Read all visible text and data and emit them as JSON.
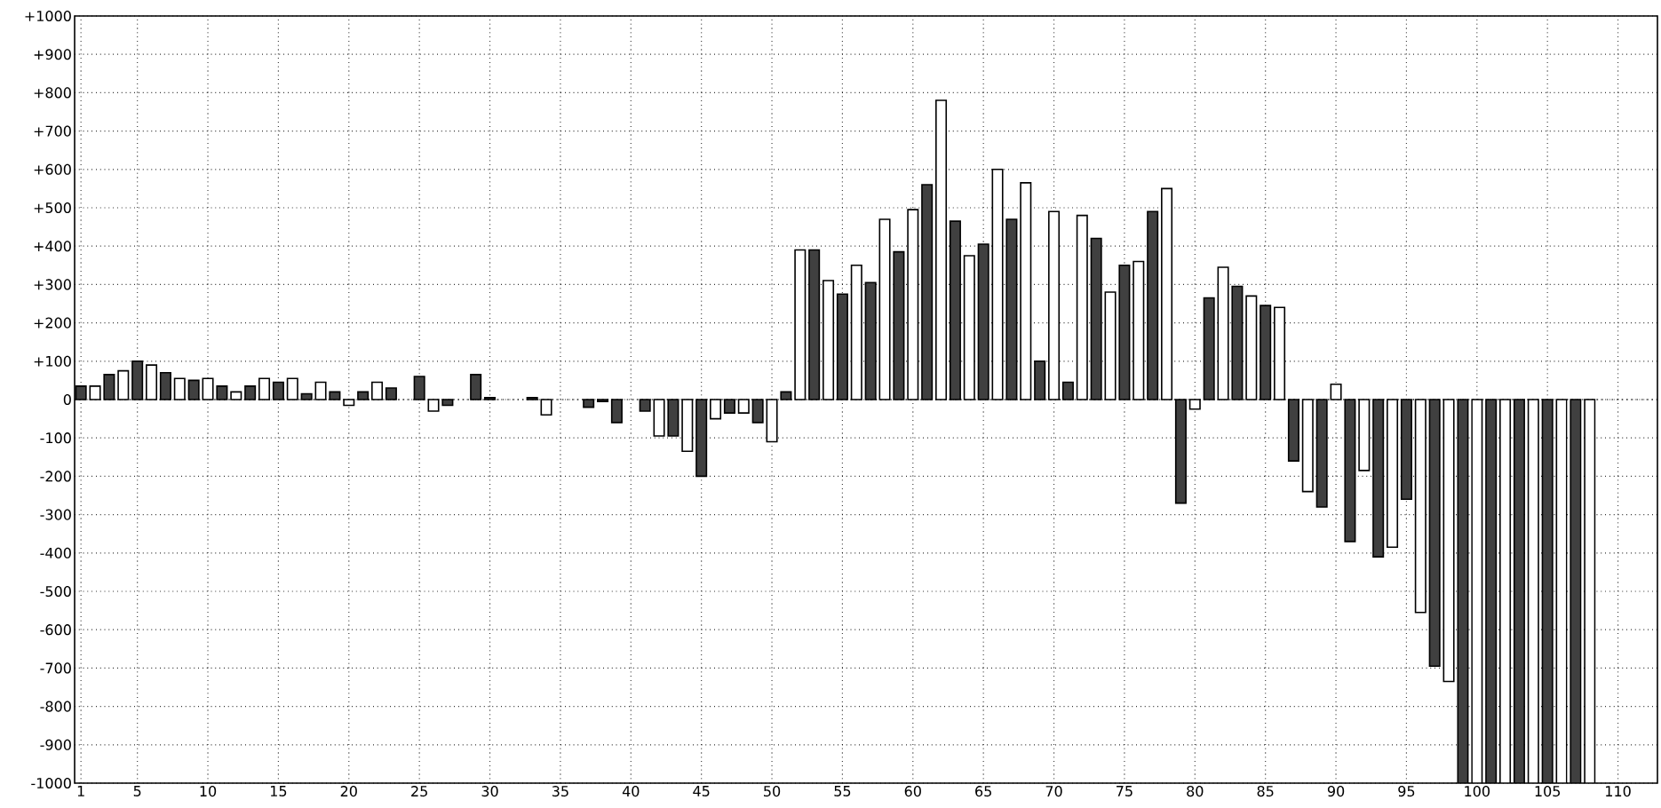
{
  "chart_data": {
    "type": "bar",
    "grid": true,
    "x": [
      1,
      2,
      3,
      4,
      5,
      6,
      7,
      8,
      9,
      10,
      11,
      12,
      13,
      14,
      15,
      16,
      17,
      18,
      19,
      20,
      21,
      22,
      23,
      24,
      25,
      26,
      27,
      28,
      29,
      30,
      31,
      32,
      33,
      34,
      35,
      36,
      37,
      38,
      39,
      40,
      41,
      42,
      43,
      44,
      45,
      46,
      47,
      48,
      49,
      50,
      51,
      52,
      53,
      54,
      55,
      56,
      57,
      58,
      59,
      60,
      61,
      62,
      63,
      64,
      65,
      66,
      67,
      68,
      69,
      70,
      71,
      72,
      73,
      74,
      75,
      76,
      77,
      78,
      79,
      80,
      81,
      82,
      83,
      84,
      85,
      86,
      87,
      88,
      89,
      90,
      91,
      92,
      93,
      94,
      95,
      96,
      97,
      98,
      99,
      100,
      101,
      102,
      103,
      104,
      105,
      106,
      107,
      108
    ],
    "values": [
      35,
      35,
      65,
      75,
      100,
      90,
      70,
      55,
      50,
      55,
      35,
      20,
      35,
      55,
      45,
      55,
      15,
      45,
      20,
      -15,
      20,
      45,
      30,
      null,
      60,
      -30,
      -15,
      null,
      65,
      5,
      null,
      null,
      5,
      -40,
      null,
      null,
      -20,
      -5,
      -60,
      null,
      -30,
      -95,
      -95,
      -135,
      -200,
      -50,
      -35,
      -35,
      -60,
      -110,
      20,
      390,
      390,
      310,
      275,
      350,
      305,
      470,
      385,
      495,
      560,
      780,
      465,
      375,
      405,
      600,
      470,
      565,
      100,
      490,
      45,
      480,
      420,
      280,
      350,
      360,
      490,
      550,
      -270,
      -25,
      265,
      345,
      295,
      270,
      245,
      240,
      -160,
      -240,
      -280,
      40,
      -370,
      -185,
      -410,
      -385,
      -260,
      -555,
      -695,
      -735,
      -1000,
      -1000,
      -1000,
      -1000,
      -1000,
      -1000,
      -1000,
      -1000,
      -1000,
      -1000
    ],
    "colors": [
      "#404040",
      "#ffffff",
      "#404040",
      "#ffffff",
      "#404040",
      "#ffffff",
      "#404040",
      "#ffffff",
      "#404040",
      "#ffffff",
      "#404040",
      "#ffffff",
      "#404040",
      "#ffffff",
      "#404040",
      "#ffffff",
      "#404040",
      "#ffffff",
      "#404040",
      "#ffffff",
      "#404040",
      "#ffffff",
      "#404040",
      "#ffffff",
      "#404040",
      "#ffffff",
      "#404040",
      "#ffffff",
      "#404040",
      "#404040",
      "#404040",
      "#404040",
      "#404040",
      "#ffffff",
      "#404040",
      "#404040",
      "#404040",
      "#404040",
      "#404040",
      "#404040",
      "#404040",
      "#ffffff",
      "#404040",
      "#ffffff",
      "#404040",
      "#ffffff",
      "#404040",
      "#ffffff",
      "#404040",
      "#ffffff",
      "#404040",
      "#ffffff",
      "#404040",
      "#ffffff",
      "#404040",
      "#ffffff",
      "#404040",
      "#ffffff",
      "#404040",
      "#ffffff",
      "#404040",
      "#ffffff",
      "#404040",
      "#ffffff",
      "#404040",
      "#ffffff",
      "#404040",
      "#ffffff",
      "#404040",
      "#ffffff",
      "#404040",
      "#ffffff",
      "#404040",
      "#ffffff",
      "#404040",
      "#ffffff",
      "#404040",
      "#ffffff",
      "#404040",
      "#ffffff",
      "#404040",
      "#ffffff",
      "#404040",
      "#ffffff",
      "#404040",
      "#ffffff",
      "#404040",
      "#ffffff",
      "#404040",
      "#ffffff",
      "#404040",
      "#ffffff",
      "#404040",
      "#ffffff",
      "#404040",
      "#ffffff",
      "#404040",
      "#ffffff",
      "#404040",
      "#ffffff",
      "#404040",
      "#ffffff",
      "#404040",
      "#ffffff",
      "#404040",
      "#ffffff",
      "#404040",
      "#ffffff"
    ],
    "xlim": [
      0.55,
      112.8
    ],
    "ylim": [
      -1000,
      1000
    ],
    "xticks": [
      1,
      5,
      10,
      15,
      20,
      25,
      30,
      35,
      40,
      45,
      50,
      55,
      60,
      65,
      70,
      75,
      80,
      85,
      90,
      95,
      100,
      105,
      110
    ],
    "yticks": [
      {
        "value": -1000,
        "label": "-1000"
      },
      {
        "value": -900,
        "label": "-900"
      },
      {
        "value": -800,
        "label": "-800"
      },
      {
        "value": -700,
        "label": "-700"
      },
      {
        "value": -600,
        "label": "-600"
      },
      {
        "value": -500,
        "label": "-500"
      },
      {
        "value": -400,
        "label": "-400"
      },
      {
        "value": -300,
        "label": "-300"
      },
      {
        "value": -200,
        "label": "-200"
      },
      {
        "value": -100,
        "label": "-100"
      },
      0,
      {
        "value": 100,
        "label": "+100"
      },
      {
        "value": 200,
        "label": "+200"
      },
      {
        "value": 300,
        "label": "+300"
      },
      {
        "value": 400,
        "label": "+400"
      },
      {
        "value": 500,
        "label": "+500"
      },
      {
        "value": 600,
        "label": "+600"
      },
      {
        "value": 700,
        "label": "+700"
      },
      {
        "value": 800,
        "label": "+800"
      },
      {
        "value": 900,
        "label": "+900"
      },
      {
        "value": 1000,
        "label": "+1000"
      }
    ]
  }
}
